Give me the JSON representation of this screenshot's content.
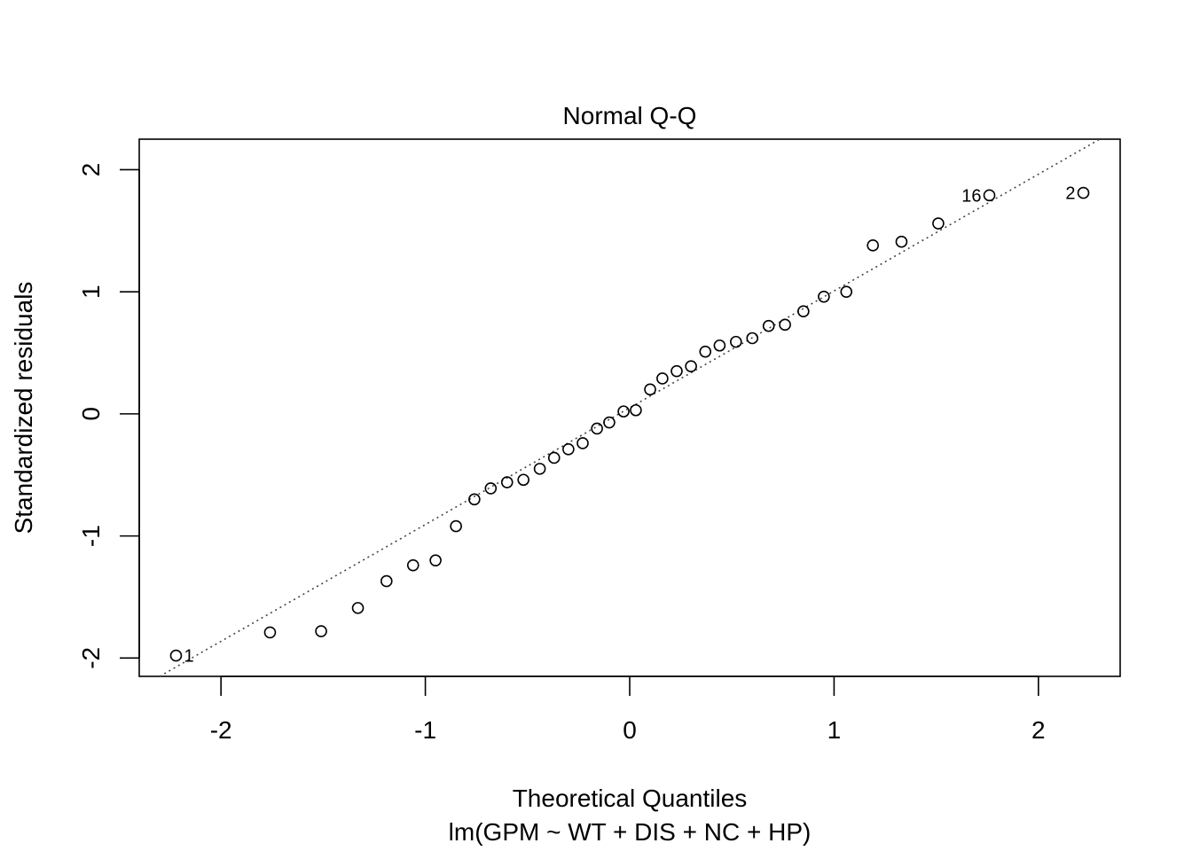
{
  "chart_data": {
    "type": "scatter",
    "title": "Normal Q-Q",
    "xlabel": "Theoretical Quantiles",
    "subtitle": "lm(GPM ~ WT + DIS + NC + HP)",
    "ylabel": "Standardized residuals",
    "xlim": [
      -2.4,
      2.4
    ],
    "ylim": [
      -2.15,
      2.25
    ],
    "xticks": [
      -2,
      -1,
      0,
      1,
      2
    ],
    "yticks": [
      -2,
      -1,
      0,
      1,
      2
    ],
    "grid": false,
    "reference_line": {
      "style": "dotted",
      "points": [
        [
          -2.3,
          -2.15
        ],
        [
          2.3,
          2.25
        ]
      ]
    },
    "points": [
      {
        "x": -2.22,
        "y": -1.98,
        "label": "1"
      },
      {
        "x": -1.76,
        "y": -1.79
      },
      {
        "x": -1.51,
        "y": -1.78
      },
      {
        "x": -1.33,
        "y": -1.59
      },
      {
        "x": -1.19,
        "y": -1.37
      },
      {
        "x": -1.06,
        "y": -1.24
      },
      {
        "x": -0.95,
        "y": -1.2
      },
      {
        "x": -0.85,
        "y": -0.92
      },
      {
        "x": -0.76,
        "y": -0.7
      },
      {
        "x": -0.68,
        "y": -0.61
      },
      {
        "x": -0.6,
        "y": -0.56
      },
      {
        "x": -0.52,
        "y": -0.54
      },
      {
        "x": -0.44,
        "y": -0.45
      },
      {
        "x": -0.37,
        "y": -0.36
      },
      {
        "x": -0.3,
        "y": -0.29
      },
      {
        "x": -0.23,
        "y": -0.24
      },
      {
        "x": -0.16,
        "y": -0.12
      },
      {
        "x": -0.1,
        "y": -0.07
      },
      {
        "x": -0.03,
        "y": 0.02
      },
      {
        "x": 0.03,
        "y": 0.03
      },
      {
        "x": 0.1,
        "y": 0.2
      },
      {
        "x": 0.16,
        "y": 0.29
      },
      {
        "x": 0.23,
        "y": 0.35
      },
      {
        "x": 0.3,
        "y": 0.39
      },
      {
        "x": 0.37,
        "y": 0.51
      },
      {
        "x": 0.44,
        "y": 0.56
      },
      {
        "x": 0.52,
        "y": 0.59
      },
      {
        "x": 0.6,
        "y": 0.62
      },
      {
        "x": 0.68,
        "y": 0.72
      },
      {
        "x": 0.76,
        "y": 0.73
      },
      {
        "x": 0.85,
        "y": 0.84
      },
      {
        "x": 0.95,
        "y": 0.96
      },
      {
        "x": 1.06,
        "y": 1.0
      },
      {
        "x": 1.19,
        "y": 1.38
      },
      {
        "x": 1.33,
        "y": 1.41
      },
      {
        "x": 1.51,
        "y": 1.56
      },
      {
        "x": 1.76,
        "y": 1.79,
        "label": "16"
      },
      {
        "x": 2.22,
        "y": 1.81,
        "label": "2"
      }
    ]
  }
}
